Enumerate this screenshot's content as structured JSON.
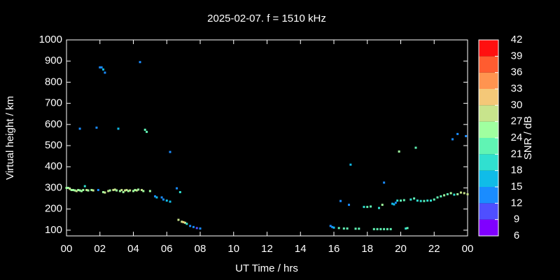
{
  "chart_data": {
    "type": "scatter",
    "title": "2025-02-07. f = 1510 kHz",
    "x_label": "UT Time / hrs",
    "y_label": "Virtual height / km",
    "xlim": [
      0,
      24
    ],
    "xticks": [
      {
        "value": 0,
        "label": "00"
      },
      {
        "value": 2,
        "label": "02"
      },
      {
        "value": 4,
        "label": "04"
      },
      {
        "value": 6,
        "label": "06"
      },
      {
        "value": 8,
        "label": "08"
      },
      10,
      12,
      14,
      16,
      18,
      20,
      22,
      {
        "value": 24,
        "label": "00"
      }
    ],
    "ylim": [
      73,
      1000
    ],
    "yticks": [
      100,
      200,
      300,
      400,
      500,
      600,
      700,
      800,
      900,
      1000
    ],
    "grid": false,
    "colorbar": {
      "label": "SNR / dB",
      "lim": [
        6,
        42
      ],
      "ticks": [
        6,
        9,
        12,
        15,
        18,
        21,
        24,
        27,
        30,
        33,
        36,
        39,
        42
      ],
      "colors": [
        "#8000ff",
        "#4f4fff",
        "#1a8cff",
        "#10bce8",
        "#30e0d0",
        "#60f4b4",
        "#a0ffa0",
        "#c8e48c",
        "#f4c878",
        "#ff9450",
        "#ff5c30",
        "#ff1010"
      ]
    },
    "x": [
      0.0,
      0.1,
      0.2,
      0.3,
      0.4,
      0.5,
      0.6,
      0.7,
      0.8,
      0.9,
      1.0,
      1.1,
      1.2,
      1.3,
      1.5,
      1.6,
      0.8,
      1.8,
      1.9,
      2.0,
      2.1,
      2.2,
      2.3,
      2.2,
      2.3,
      2.5,
      2.6,
      2.8,
      2.9,
      3.0,
      3.2,
      3.3,
      3.4,
      3.5,
      3.6,
      3.7,
      3.8,
      4.0,
      4.1,
      4.2,
      4.3,
      4.5,
      4.6,
      3.1,
      4.4,
      4.7,
      4.8,
      5.0,
      5.3,
      5.4,
      5.7,
      5.8,
      6.0,
      6.2,
      6.2,
      6.6,
      6.8,
      6.7,
      6.9,
      7.0,
      7.1,
      7.2,
      7.4,
      7.6,
      7.8,
      8.0,
      15.8,
      15.9,
      16.0,
      16.3,
      16.4,
      16.6,
      16.8,
      16.9,
      17.0,
      17.3,
      17.5,
      17.8,
      18.0,
      18.2,
      18.4,
      18.6,
      18.7,
      18.8,
      18.9,
      19.0,
      19.0,
      19.2,
      19.4,
      19.5,
      19.6,
      19.7,
      19.8,
      19.9,
      20.0,
      20.2,
      20.3,
      20.4,
      20.6,
      20.8,
      20.9,
      21.0,
      21.2,
      21.4,
      21.6,
      21.8,
      22.0,
      22.2,
      22.4,
      22.6,
      22.8,
      23.0,
      23.1,
      23.2,
      23.4,
      23.4,
      23.6,
      23.8,
      23.9,
      24.0
    ],
    "values": [
      300,
      300,
      295,
      290,
      290,
      288,
      285,
      290,
      288,
      285,
      290,
      308,
      290,
      288,
      290,
      288,
      580,
      585,
      290,
      870,
      870,
      860,
      845,
      280,
      278,
      285,
      288,
      290,
      292,
      288,
      285,
      290,
      280,
      288,
      290,
      285,
      288,
      285,
      290,
      288,
      292,
      290,
      285,
      580,
      895,
      575,
      565,
      285,
      260,
      255,
      255,
      245,
      240,
      235,
      470,
      298,
      280,
      149,
      140,
      138,
      135,
      130,
      120,
      115,
      110,
      108,
      120,
      115,
      112,
      110,
      238,
      108,
      108,
      220,
      410,
      107,
      107,
      210,
      210,
      212,
      105,
      105,
      205,
      105,
      220,
      325,
      105,
      105,
      105,
      225,
      222,
      230,
      240,
      472,
      240,
      242,
      108,
      110,
      245,
      250,
      490,
      240,
      238,
      238,
      240,
      240,
      245,
      255,
      260,
      265,
      270,
      275,
      530,
      268,
      555,
      270,
      278,
      275,
      545,
      270
    ],
    "snr": [
      26,
      25,
      27,
      26,
      25,
      26,
      27,
      26,
      25,
      26,
      26,
      19,
      27,
      26,
      26,
      27,
      13,
      12,
      13,
      14,
      13,
      15,
      14,
      26,
      27,
      27,
      26,
      27,
      27,
      26,
      25,
      27,
      26,
      27,
      27,
      26,
      27,
      26,
      25,
      27,
      26,
      27,
      26,
      16,
      13,
      22,
      23,
      26,
      14,
      16,
      12,
      13,
      15,
      17,
      12,
      14,
      18,
      27,
      28,
      30,
      27,
      20,
      14,
      12,
      11,
      13,
      13,
      14,
      15,
      21,
      14,
      21,
      23,
      14,
      16,
      22,
      22,
      20,
      21,
      22,
      22,
      23,
      19,
      21,
      24,
      13,
      22,
      23,
      22,
      15,
      17,
      14,
      20,
      24,
      21,
      22,
      20,
      22,
      20,
      21,
      22,
      19,
      19,
      21,
      20,
      19,
      22,
      23,
      21,
      24,
      23,
      25,
      13,
      18,
      12,
      24,
      28,
      27,
      13,
      27
    ]
  }
}
